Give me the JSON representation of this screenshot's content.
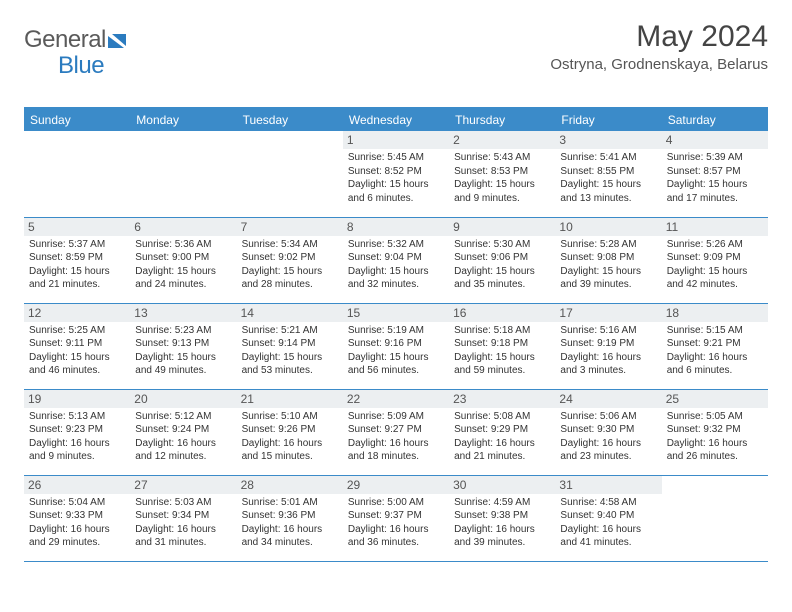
{
  "brand": {
    "part1": "General",
    "part2": "Blue"
  },
  "title": "May 2024",
  "location": "Ostryna, Grodnenskaya, Belarus",
  "colors": {
    "accent": "#3b8bc9",
    "headerbg": "#3b8bc9",
    "dayhdr": "#eceff1"
  },
  "weekdays": [
    "Sunday",
    "Monday",
    "Tuesday",
    "Wednesday",
    "Thursday",
    "Friday",
    "Saturday"
  ],
  "weeks": [
    [
      null,
      null,
      null,
      {
        "n": "1",
        "sr": "5:45 AM",
        "ss": "8:52 PM",
        "dl": "15 hours and 6 minutes."
      },
      {
        "n": "2",
        "sr": "5:43 AM",
        "ss": "8:53 PM",
        "dl": "15 hours and 9 minutes."
      },
      {
        "n": "3",
        "sr": "5:41 AM",
        "ss": "8:55 PM",
        "dl": "15 hours and 13 minutes."
      },
      {
        "n": "4",
        "sr": "5:39 AM",
        "ss": "8:57 PM",
        "dl": "15 hours and 17 minutes."
      }
    ],
    [
      {
        "n": "5",
        "sr": "5:37 AM",
        "ss": "8:59 PM",
        "dl": "15 hours and 21 minutes."
      },
      {
        "n": "6",
        "sr": "5:36 AM",
        "ss": "9:00 PM",
        "dl": "15 hours and 24 minutes."
      },
      {
        "n": "7",
        "sr": "5:34 AM",
        "ss": "9:02 PM",
        "dl": "15 hours and 28 minutes."
      },
      {
        "n": "8",
        "sr": "5:32 AM",
        "ss": "9:04 PM",
        "dl": "15 hours and 32 minutes."
      },
      {
        "n": "9",
        "sr": "5:30 AM",
        "ss": "9:06 PM",
        "dl": "15 hours and 35 minutes."
      },
      {
        "n": "10",
        "sr": "5:28 AM",
        "ss": "9:08 PM",
        "dl": "15 hours and 39 minutes."
      },
      {
        "n": "11",
        "sr": "5:26 AM",
        "ss": "9:09 PM",
        "dl": "15 hours and 42 minutes."
      }
    ],
    [
      {
        "n": "12",
        "sr": "5:25 AM",
        "ss": "9:11 PM",
        "dl": "15 hours and 46 minutes."
      },
      {
        "n": "13",
        "sr": "5:23 AM",
        "ss": "9:13 PM",
        "dl": "15 hours and 49 minutes."
      },
      {
        "n": "14",
        "sr": "5:21 AM",
        "ss": "9:14 PM",
        "dl": "15 hours and 53 minutes."
      },
      {
        "n": "15",
        "sr": "5:19 AM",
        "ss": "9:16 PM",
        "dl": "15 hours and 56 minutes."
      },
      {
        "n": "16",
        "sr": "5:18 AM",
        "ss": "9:18 PM",
        "dl": "15 hours and 59 minutes."
      },
      {
        "n": "17",
        "sr": "5:16 AM",
        "ss": "9:19 PM",
        "dl": "16 hours and 3 minutes."
      },
      {
        "n": "18",
        "sr": "5:15 AM",
        "ss": "9:21 PM",
        "dl": "16 hours and 6 minutes."
      }
    ],
    [
      {
        "n": "19",
        "sr": "5:13 AM",
        "ss": "9:23 PM",
        "dl": "16 hours and 9 minutes."
      },
      {
        "n": "20",
        "sr": "5:12 AM",
        "ss": "9:24 PM",
        "dl": "16 hours and 12 minutes."
      },
      {
        "n": "21",
        "sr": "5:10 AM",
        "ss": "9:26 PM",
        "dl": "16 hours and 15 minutes."
      },
      {
        "n": "22",
        "sr": "5:09 AM",
        "ss": "9:27 PM",
        "dl": "16 hours and 18 minutes."
      },
      {
        "n": "23",
        "sr": "5:08 AM",
        "ss": "9:29 PM",
        "dl": "16 hours and 21 minutes."
      },
      {
        "n": "24",
        "sr": "5:06 AM",
        "ss": "9:30 PM",
        "dl": "16 hours and 23 minutes."
      },
      {
        "n": "25",
        "sr": "5:05 AM",
        "ss": "9:32 PM",
        "dl": "16 hours and 26 minutes."
      }
    ],
    [
      {
        "n": "26",
        "sr": "5:04 AM",
        "ss": "9:33 PM",
        "dl": "16 hours and 29 minutes."
      },
      {
        "n": "27",
        "sr": "5:03 AM",
        "ss": "9:34 PM",
        "dl": "16 hours and 31 minutes."
      },
      {
        "n": "28",
        "sr": "5:01 AM",
        "ss": "9:36 PM",
        "dl": "16 hours and 34 minutes."
      },
      {
        "n": "29",
        "sr": "5:00 AM",
        "ss": "9:37 PM",
        "dl": "16 hours and 36 minutes."
      },
      {
        "n": "30",
        "sr": "4:59 AM",
        "ss": "9:38 PM",
        "dl": "16 hours and 39 minutes."
      },
      {
        "n": "31",
        "sr": "4:58 AM",
        "ss": "9:40 PM",
        "dl": "16 hours and 41 minutes."
      },
      null
    ]
  ],
  "labels": {
    "sunrise": "Sunrise: ",
    "sunset": "Sunset: ",
    "daylight": "Daylight: "
  }
}
